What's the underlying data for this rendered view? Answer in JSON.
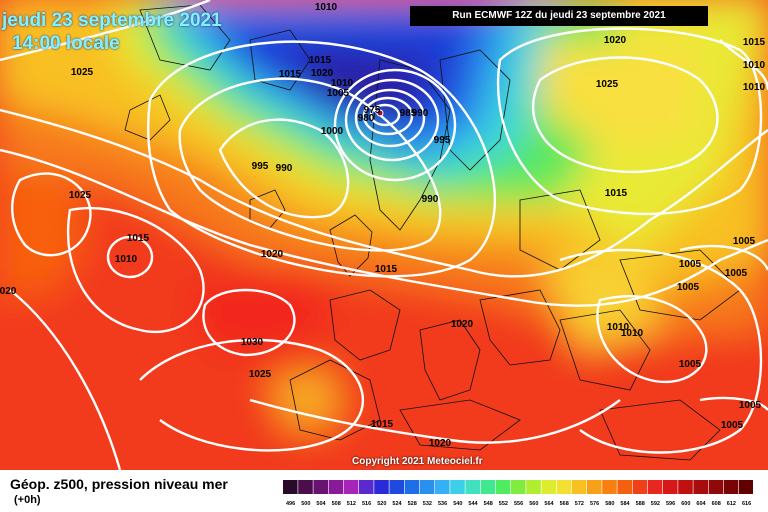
{
  "header": {
    "date_line": "jeudi 23 septembre 2021",
    "time_line": "14:00 locale",
    "run_label": "Run ECMWF 12Z du jeudi 23 septembre 2021"
  },
  "footer": {
    "parameter": "Géop. z500, pression niveau mer",
    "lead_time": "(+0h)",
    "copyright": "Copyright 2021 Meteociel.fr"
  },
  "isobar_labels": [
    {
      "id": "l1",
      "text": "1010"
    },
    {
      "id": "l2",
      "text": "1015"
    },
    {
      "id": "l3",
      "text": "1025"
    },
    {
      "id": "l4",
      "text": "1015"
    },
    {
      "id": "l5",
      "text": "1020"
    },
    {
      "id": "l6",
      "text": "1010"
    },
    {
      "id": "l7",
      "text": "1005"
    },
    {
      "id": "l8",
      "text": "975"
    },
    {
      "id": "l9",
      "text": "980"
    },
    {
      "id": "l10",
      "text": "985"
    },
    {
      "id": "l11",
      "text": "990"
    },
    {
      "id": "l12",
      "text": "1000"
    },
    {
      "id": "l13",
      "text": "995"
    },
    {
      "id": "l14",
      "text": "990"
    },
    {
      "id": "l15",
      "text": "995"
    },
    {
      "id": "l16",
      "text": "990"
    },
    {
      "id": "l17",
      "text": "1020"
    },
    {
      "id": "l18",
      "text": "1025"
    },
    {
      "id": "l19",
      "text": "1015"
    },
    {
      "id": "l20",
      "text": "1025"
    },
    {
      "id": "l21",
      "text": "1015"
    },
    {
      "id": "l22",
      "text": "1010"
    },
    {
      "id": "l23",
      "text": "020"
    },
    {
      "id": "l24",
      "text": "1020"
    },
    {
      "id": "l25",
      "text": "1015"
    },
    {
      "id": "l26",
      "text": "1030"
    },
    {
      "id": "l27",
      "text": "1025"
    },
    {
      "id": "l28",
      "text": "1020"
    },
    {
      "id": "l29",
      "text": "1015"
    },
    {
      "id": "l30",
      "text": "1020"
    },
    {
      "id": "l31",
      "text": "1005"
    },
    {
      "id": "l32",
      "text": "1005"
    },
    {
      "id": "l33",
      "text": "1005"
    },
    {
      "id": "l34",
      "text": "1005"
    },
    {
      "id": "l35",
      "text": "1010"
    },
    {
      "id": "l36",
      "text": "1010"
    },
    {
      "id": "l37",
      "text": "1005"
    },
    {
      "id": "l38",
      "text": "1005"
    },
    {
      "id": "l39",
      "text": "1005"
    },
    {
      "id": "l40",
      "text": "1015"
    },
    {
      "id": "l41",
      "text": "1010"
    },
    {
      "id": "l42",
      "text": "1010"
    }
  ],
  "legend": {
    "ticks": [
      "496",
      "500",
      "504",
      "508",
      "512",
      "516",
      "520",
      "524",
      "528",
      "532",
      "536",
      "540",
      "544",
      "548",
      "552",
      "556",
      "560",
      "564",
      "568",
      "572",
      "576",
      "580",
      "584",
      "588",
      "592",
      "596",
      "600",
      "604",
      "608",
      "612",
      "616"
    ],
    "colors": [
      "#2a0a2a",
      "#4b0d4b",
      "#6a1270",
      "#8a1a98",
      "#a624b8",
      "#5a2ad0",
      "#2a2ad8",
      "#1e4ae0",
      "#1e6ee8",
      "#2a90f0",
      "#36b0f4",
      "#3cd0e8",
      "#40e0c0",
      "#40e890",
      "#50ec60",
      "#80ec40",
      "#b0ec30",
      "#dcec30",
      "#f4e030",
      "#f8c020",
      "#f8a018",
      "#f88010",
      "#f46010",
      "#f04018",
      "#e82820",
      "#d81818",
      "#c01010",
      "#a80c0c",
      "#900808",
      "#780404",
      "#600000"
    ]
  }
}
